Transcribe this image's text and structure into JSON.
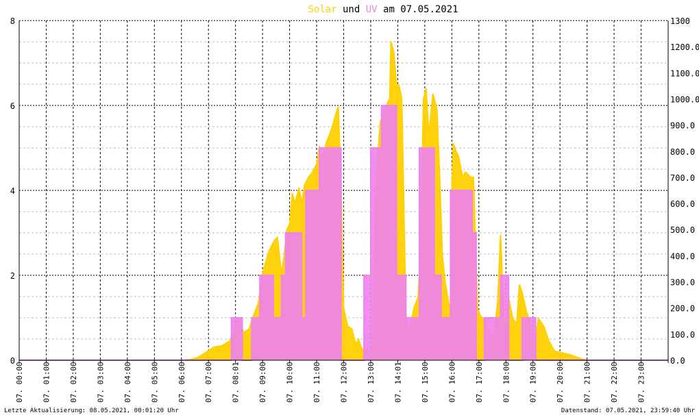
{
  "chart_data": {
    "type": "area",
    "title": {
      "part1": "Solar",
      "part2": "und",
      "part3": "UV",
      "part4": "am 07.05.2021",
      "color1": "#ffd000",
      "color3": "#ee82ee"
    },
    "x_axis": {
      "range": [
        0,
        24
      ],
      "tick_labels": [
        "07. 00:00",
        "07. 01:00",
        "07. 02:00",
        "07. 03:00",
        "07. 04:00",
        "07. 05:00",
        "07. 06:00",
        "07. 07:00",
        "07. 08:01",
        "07. 09:00",
        "07. 10:00",
        "07. 11:00",
        "07. 12:00",
        "07. 13:00",
        "07. 14:01",
        "07. 15:00",
        "07. 16:00",
        "07. 17:00",
        "07. 18:00",
        "07. 19:00",
        "07. 20:00",
        "07. 21:00",
        "07. 22:00",
        "07. 23:00"
      ]
    },
    "y_left": {
      "range": [
        0,
        8
      ],
      "ticks": [
        "0",
        "2",
        "4",
        "6",
        "8"
      ],
      "minor_step": 0.5
    },
    "y_right": {
      "range": [
        0,
        1300
      ],
      "ticks": [
        "0.0",
        "100.0",
        "200.0",
        "300.0",
        "400.0",
        "500.0",
        "600.0",
        "700.0",
        "800.0",
        "900.0",
        "1000.0",
        "1100.0",
        "1200.0",
        "1300"
      ]
    },
    "grid": true,
    "series": [
      {
        "name": "Solar",
        "axis": "right",
        "color": "#ffd000",
        "points": [
          [
            0,
            0
          ],
          [
            6.0,
            0
          ],
          [
            6.3,
            2
          ],
          [
            6.6,
            10
          ],
          [
            6.9,
            30
          ],
          [
            7.2,
            50
          ],
          [
            7.5,
            55
          ],
          [
            7.8,
            75
          ],
          [
            7.95,
            115
          ],
          [
            8.05,
            150
          ],
          [
            8.15,
            155
          ],
          [
            8.3,
            105
          ],
          [
            8.5,
            120
          ],
          [
            8.7,
            180
          ],
          [
            8.85,
            220
          ],
          [
            9.0,
            330
          ],
          [
            9.1,
            370
          ],
          [
            9.25,
            420
          ],
          [
            9.35,
            440
          ],
          [
            9.45,
            460
          ],
          [
            9.55,
            470
          ],
          [
            9.7,
            330
          ],
          [
            9.8,
            400
          ],
          [
            9.9,
            500
          ],
          [
            10.0,
            520
          ],
          [
            10.1,
            640
          ],
          [
            10.2,
            600
          ],
          [
            10.35,
            660
          ],
          [
            10.45,
            600
          ],
          [
            10.55,
            670
          ],
          [
            10.7,
            700
          ],
          [
            10.85,
            720
          ],
          [
            11.0,
            750
          ],
          [
            11.1,
            820
          ],
          [
            11.2,
            770
          ],
          [
            11.35,
            830
          ],
          [
            11.5,
            870
          ],
          [
            11.6,
            900
          ],
          [
            11.7,
            940
          ],
          [
            11.8,
            970
          ],
          [
            11.9,
            680
          ],
          [
            12.0,
            200
          ],
          [
            12.15,
            130
          ],
          [
            12.3,
            120
          ],
          [
            12.45,
            60
          ],
          [
            12.55,
            80
          ],
          [
            12.65,
            50
          ],
          [
            12.75,
            30
          ],
          [
            12.85,
            45
          ],
          [
            12.95,
            25
          ],
          [
            13.05,
            60
          ],
          [
            13.2,
            700
          ],
          [
            13.35,
            910
          ],
          [
            13.5,
            960
          ],
          [
            13.6,
            980
          ],
          [
            13.7,
            1000
          ],
          [
            13.75,
            1220
          ],
          [
            13.85,
            1180
          ],
          [
            13.95,
            1060
          ],
          [
            14.05,
            1050
          ],
          [
            14.15,
            1000
          ],
          [
            14.3,
            170
          ],
          [
            14.4,
            100
          ],
          [
            14.5,
            150
          ],
          [
            14.6,
            200
          ],
          [
            14.75,
            240
          ],
          [
            14.85,
            440
          ],
          [
            14.95,
            1000
          ],
          [
            15.05,
            1040
          ],
          [
            15.15,
            860
          ],
          [
            15.3,
            1020
          ],
          [
            15.45,
            960
          ],
          [
            15.55,
            700
          ],
          [
            15.65,
            400
          ],
          [
            15.75,
            300
          ],
          [
            15.85,
            240
          ],
          [
            15.95,
            180
          ],
          [
            16.0,
            650
          ],
          [
            16.05,
            830
          ],
          [
            16.15,
            800
          ],
          [
            16.25,
            780
          ],
          [
            16.4,
            700
          ],
          [
            16.5,
            720
          ],
          [
            16.6,
            710
          ],
          [
            16.7,
            700
          ],
          [
            16.8,
            700
          ],
          [
            16.95,
            200
          ],
          [
            17.05,
            170
          ],
          [
            17.25,
            150
          ],
          [
            17.4,
            110
          ],
          [
            17.55,
            90
          ],
          [
            17.7,
            230
          ],
          [
            17.8,
            480
          ],
          [
            17.95,
            100
          ],
          [
            18.1,
            240
          ],
          [
            18.25,
            160
          ],
          [
            18.4,
            140
          ],
          [
            18.5,
            290
          ],
          [
            18.6,
            260
          ],
          [
            18.75,
            190
          ],
          [
            18.9,
            140
          ],
          [
            19.0,
            90
          ],
          [
            19.1,
            80
          ],
          [
            19.2,
            160
          ],
          [
            19.4,
            130
          ],
          [
            19.6,
            70
          ],
          [
            19.8,
            35
          ],
          [
            20.0,
            30
          ],
          [
            20.2,
            25
          ],
          [
            20.4,
            20
          ],
          [
            20.6,
            12
          ],
          [
            20.8,
            5
          ],
          [
            21.0,
            0
          ],
          [
            24,
            0
          ]
        ]
      },
      {
        "name": "UV",
        "axis": "left",
        "color": "#ee82ee",
        "points": [
          [
            0,
            0
          ],
          [
            7.85,
            0
          ],
          [
            7.85,
            1
          ],
          [
            8.25,
            1
          ],
          [
            8.25,
            0
          ],
          [
            8.6,
            0
          ],
          [
            8.6,
            1
          ],
          [
            8.9,
            1
          ],
          [
            8.9,
            2
          ],
          [
            9.4,
            2
          ],
          [
            9.4,
            1
          ],
          [
            9.7,
            1
          ],
          [
            9.7,
            2
          ],
          [
            9.85,
            2
          ],
          [
            9.85,
            3
          ],
          [
            10.45,
            3
          ],
          [
            10.45,
            1
          ],
          [
            10.6,
            1
          ],
          [
            10.6,
            4
          ],
          [
            11.1,
            4
          ],
          [
            11.1,
            5
          ],
          [
            11.9,
            5
          ],
          [
            11.9,
            0
          ],
          [
            12.75,
            0
          ],
          [
            12.75,
            2
          ],
          [
            13.0,
            2
          ],
          [
            13.0,
            5
          ],
          [
            13.4,
            5
          ],
          [
            13.4,
            6
          ],
          [
            13.95,
            6
          ],
          [
            13.95,
            2
          ],
          [
            14.3,
            2
          ],
          [
            14.3,
            1
          ],
          [
            14.8,
            1
          ],
          [
            14.8,
            5
          ],
          [
            15.35,
            5
          ],
          [
            15.35,
            2
          ],
          [
            15.6,
            2
          ],
          [
            15.6,
            1
          ],
          [
            15.95,
            1
          ],
          [
            15.95,
            4
          ],
          [
            16.75,
            4
          ],
          [
            16.75,
            3
          ],
          [
            16.9,
            3
          ],
          [
            16.9,
            0
          ],
          [
            17.2,
            0
          ],
          [
            17.2,
            1
          ],
          [
            17.8,
            1
          ],
          [
            17.8,
            2
          ],
          [
            18.1,
            2
          ],
          [
            18.1,
            0
          ],
          [
            18.6,
            0
          ],
          [
            18.6,
            1
          ],
          [
            19.1,
            1
          ],
          [
            19.1,
            0
          ],
          [
            24,
            0
          ]
        ]
      }
    ],
    "footer_left": "Letzte Aktualisierung: 08.05.2021, 00:01:20 Uhr",
    "footer_right": "Datenstand: 07.05.2021, 23:59:40 Uhr"
  }
}
